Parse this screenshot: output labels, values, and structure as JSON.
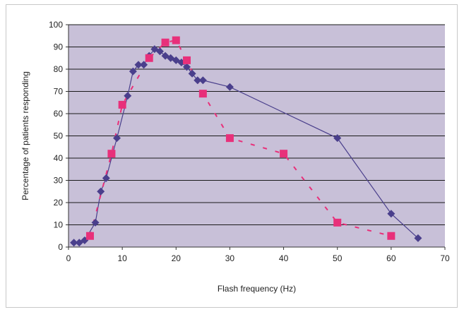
{
  "chart_data": {
    "type": "scatter",
    "xlabel": "Flash frequency (Hz)",
    "ylabel": "Percentage of patients responding",
    "xlim": [
      0,
      70
    ],
    "ylim": [
      0,
      100
    ],
    "x_ticks": [
      "0",
      "10",
      "20",
      "30",
      "40",
      "50",
      "60",
      "70"
    ],
    "y_ticks": [
      "0",
      "10",
      "20",
      "30",
      "40",
      "50",
      "60",
      "70",
      "80",
      "90",
      "100"
    ],
    "grid": "horizontal",
    "legend": "none",
    "plot_background": "#c8c0d8",
    "series": [
      {
        "marker": "diamond",
        "color": "#4a3f8c",
        "line": "solid",
        "points": [
          [
            1,
            2
          ],
          [
            2,
            2
          ],
          [
            3,
            3
          ],
          [
            5,
            11
          ],
          [
            6,
            25
          ],
          [
            7,
            31
          ],
          [
            9,
            49
          ],
          [
            11,
            68
          ],
          [
            12,
            79
          ],
          [
            13,
            82
          ],
          [
            14,
            82
          ],
          [
            15,
            86
          ],
          [
            16,
            89
          ],
          [
            17,
            88
          ],
          [
            18,
            86
          ],
          [
            19,
            85
          ],
          [
            20,
            84
          ],
          [
            21,
            83
          ],
          [
            22,
            81
          ],
          [
            23,
            78
          ],
          [
            24,
            75
          ],
          [
            25,
            75
          ],
          [
            30,
            72
          ],
          [
            50,
            49
          ],
          [
            60,
            15
          ],
          [
            65,
            4
          ]
        ]
      },
      {
        "marker": "square",
        "color": "#e8307a",
        "line": "dashed",
        "points": [
          [
            4,
            5
          ],
          [
            8,
            42
          ],
          [
            10,
            64
          ],
          [
            15,
            85
          ],
          [
            18,
            92
          ],
          [
            20,
            93
          ],
          [
            22,
            84
          ],
          [
            25,
            69
          ],
          [
            30,
            49
          ],
          [
            40,
            42
          ],
          [
            50,
            11
          ],
          [
            60,
            5
          ]
        ]
      }
    ]
  }
}
